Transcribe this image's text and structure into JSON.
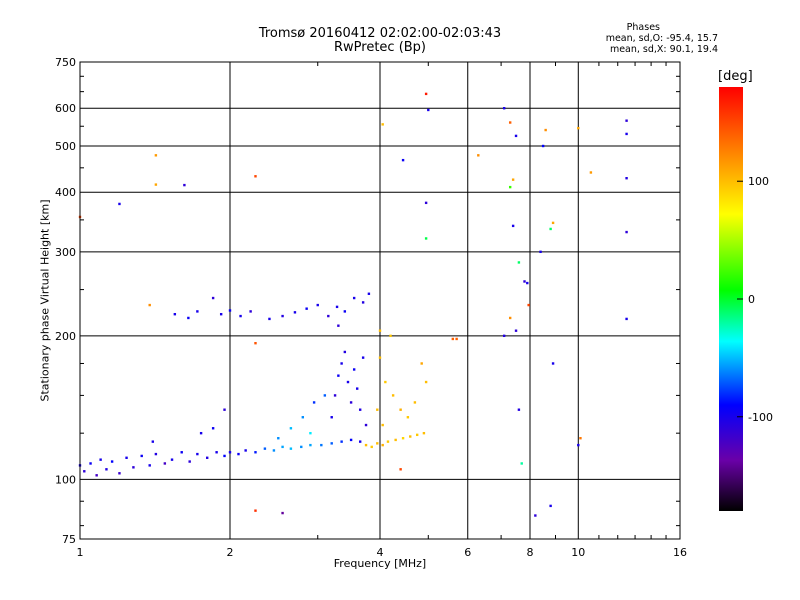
{
  "header": {
    "line1": "Tromsø 20160412 02:02:00-02:03:43",
    "line2": "RwPretec (Bp)"
  },
  "stats": {
    "heading": "Phases",
    "o_mode": "mean, sd,O: -95.4, 15.7",
    "x_mode": "mean, sd,X:  90.1, 19.4"
  },
  "chart_data": {
    "type": "scatter",
    "title": "Tromsø 20160412 02:02:00-02:03:43",
    "subtitle": "RwPretec (Bp)",
    "xlabel": "Frequency [MHz]",
    "ylabel": "Stationary phase Virtual Height [km]",
    "x_scale": "log",
    "y_scale": "log",
    "xlim": [
      1,
      16
    ],
    "ylim": [
      75,
      750
    ],
    "x_ticks": [
      1,
      2,
      4,
      6,
      8,
      10,
      16
    ],
    "x_tick_labels": [
      "1",
      "2",
      "4",
      "6",
      "8",
      "10",
      "16"
    ],
    "y_ticks": [
      75,
      100,
      200,
      300,
      400,
      500,
      600,
      750
    ],
    "y_tick_labels": [
      "75",
      "100",
      "200",
      "300",
      "400",
      "500",
      "600",
      "750"
    ],
    "grid": true,
    "colorbar": {
      "label": "[deg]",
      "range": [
        -180,
        180
      ],
      "ticks": [
        100,
        0,
        -100
      ],
      "tick_labels": [
        "100",
        "0",
        "-100"
      ],
      "colormap": [
        "#000000",
        "#6a00a8",
        "#0000ff",
        "#00ffff",
        "#00ff00",
        "#ffff00",
        "#ff8000",
        "#ff0000"
      ]
    },
    "series": [
      {
        "values": [
          {
            "x": 1.0,
            "y": 107,
            "phase": -100
          },
          {
            "x": 1.02,
            "y": 104,
            "phase": -110
          },
          {
            "x": 1.05,
            "y": 108,
            "phase": -95
          },
          {
            "x": 1.08,
            "y": 102,
            "phase": -120
          },
          {
            "x": 1.1,
            "y": 110,
            "phase": -100
          },
          {
            "x": 1.13,
            "y": 105,
            "phase": -105
          },
          {
            "x": 1.16,
            "y": 109,
            "phase": -90
          },
          {
            "x": 1.2,
            "y": 103,
            "phase": -115
          },
          {
            "x": 1.24,
            "y": 111,
            "phase": -100
          },
          {
            "x": 1.28,
            "y": 106,
            "phase": -110
          },
          {
            "x": 1.33,
            "y": 112,
            "phase": -95
          },
          {
            "x": 1.38,
            "y": 107,
            "phase": -100
          },
          {
            "x": 1.42,
            "y": 113,
            "phase": -105
          },
          {
            "x": 1.48,
            "y": 108,
            "phase": -120
          },
          {
            "x": 1.53,
            "y": 110,
            "phase": -100
          },
          {
            "x": 1.6,
            "y": 114,
            "phase": -95
          },
          {
            "x": 1.66,
            "y": 109,
            "phase": -110
          },
          {
            "x": 1.72,
            "y": 113,
            "phase": -100
          },
          {
            "x": 1.8,
            "y": 111,
            "phase": -105
          },
          {
            "x": 1.88,
            "y": 114,
            "phase": -100
          },
          {
            "x": 1.95,
            "y": 112,
            "phase": -90
          },
          {
            "x": 2.0,
            "y": 114,
            "phase": -100
          },
          {
            "x": 2.08,
            "y": 113,
            "phase": -95
          },
          {
            "x": 2.15,
            "y": 115,
            "phase": -100
          },
          {
            "x": 2.25,
            "y": 114,
            "phase": -85
          },
          {
            "x": 2.35,
            "y": 116,
            "phase": -70
          },
          {
            "x": 2.45,
            "y": 115,
            "phase": -60
          },
          {
            "x": 2.55,
            "y": 117,
            "phase": -55
          },
          {
            "x": 2.65,
            "y": 116,
            "phase": -50
          },
          {
            "x": 2.78,
            "y": 117,
            "phase": -60
          },
          {
            "x": 2.9,
            "y": 118,
            "phase": -55
          },
          {
            "x": 3.05,
            "y": 118,
            "phase": -65
          },
          {
            "x": 3.2,
            "y": 119,
            "phase": -70
          },
          {
            "x": 3.35,
            "y": 120,
            "phase": -80
          },
          {
            "x": 3.5,
            "y": 121,
            "phase": -90
          },
          {
            "x": 3.65,
            "y": 120,
            "phase": -100
          },
          {
            "x": 3.75,
            "y": 118,
            "phase": 100
          },
          {
            "x": 3.85,
            "y": 117,
            "phase": 95
          },
          {
            "x": 3.95,
            "y": 119,
            "phase": 100
          },
          {
            "x": 4.05,
            "y": 118,
            "phase": 105
          },
          {
            "x": 4.15,
            "y": 120,
            "phase": 95
          },
          {
            "x": 4.3,
            "y": 121,
            "phase": 100
          },
          {
            "x": 4.45,
            "y": 122,
            "phase": 90
          },
          {
            "x": 4.6,
            "y": 123,
            "phase": 100
          },
          {
            "x": 4.75,
            "y": 124,
            "phase": 95
          },
          {
            "x": 4.9,
            "y": 125,
            "phase": 100
          },
          {
            "x": 3.2,
            "y": 135,
            "phase": -100
          },
          {
            "x": 3.25,
            "y": 150,
            "phase": -110
          },
          {
            "x": 3.3,
            "y": 165,
            "phase": -95
          },
          {
            "x": 3.35,
            "y": 175,
            "phase": -100
          },
          {
            "x": 3.4,
            "y": 185,
            "phase": -105
          },
          {
            "x": 3.45,
            "y": 160,
            "phase": -100
          },
          {
            "x": 3.5,
            "y": 145,
            "phase": -110
          },
          {
            "x": 3.55,
            "y": 170,
            "phase": -95
          },
          {
            "x": 3.6,
            "y": 155,
            "phase": -100
          },
          {
            "x": 3.65,
            "y": 140,
            "phase": -105
          },
          {
            "x": 3.7,
            "y": 180,
            "phase": -100
          },
          {
            "x": 3.75,
            "y": 130,
            "phase": -110
          },
          {
            "x": 3.3,
            "y": 210,
            "phase": -110
          },
          {
            "x": 3.28,
            "y": 230,
            "phase": -100
          },
          {
            "x": 3.4,
            "y": 225,
            "phase": -95
          },
          {
            "x": 3.55,
            "y": 240,
            "phase": -100
          },
          {
            "x": 3.7,
            "y": 235,
            "phase": -105
          },
          {
            "x": 3.8,
            "y": 245,
            "phase": -100
          },
          {
            "x": 3.15,
            "y": 220,
            "phase": -110
          },
          {
            "x": 3.0,
            "y": 232,
            "phase": -100
          },
          {
            "x": 2.85,
            "y": 228,
            "phase": -95
          },
          {
            "x": 2.7,
            "y": 224,
            "phase": -100
          },
          {
            "x": 2.55,
            "y": 220,
            "phase": -105
          },
          {
            "x": 2.4,
            "y": 217,
            "phase": -100
          },
          {
            "x": 2.2,
            "y": 225,
            "phase": -110
          },
          {
            "x": 2.1,
            "y": 220,
            "phase": -100
          },
          {
            "x": 2.0,
            "y": 226,
            "phase": -95
          },
          {
            "x": 1.92,
            "y": 222,
            "phase": -100
          },
          {
            "x": 1.85,
            "y": 240,
            "phase": -110
          },
          {
            "x": 1.72,
            "y": 225,
            "phase": -100
          },
          {
            "x": 1.65,
            "y": 218,
            "phase": -95
          },
          {
            "x": 1.55,
            "y": 222,
            "phase": -100
          },
          {
            "x": 2.95,
            "y": 145,
            "phase": -80
          },
          {
            "x": 2.8,
            "y": 135,
            "phase": -60
          },
          {
            "x": 2.65,
            "y": 128,
            "phase": -50
          },
          {
            "x": 2.5,
            "y": 122,
            "phase": -60
          },
          {
            "x": 3.1,
            "y": 150,
            "phase": -70
          },
          {
            "x": 2.9,
            "y": 125,
            "phase": -40
          },
          {
            "x": 1.75,
            "y": 125,
            "phase": -100
          },
          {
            "x": 1.85,
            "y": 128,
            "phase": -95
          },
          {
            "x": 1.4,
            "y": 120,
            "phase": -100
          },
          {
            "x": 1.95,
            "y": 140,
            "phase": -110
          },
          {
            "x": 4.0,
            "y": 180,
            "phase": 100
          },
          {
            "x": 4.1,
            "y": 160,
            "phase": 95
          },
          {
            "x": 4.25,
            "y": 150,
            "phase": 100
          },
          {
            "x": 4.4,
            "y": 140,
            "phase": 105
          },
          {
            "x": 4.55,
            "y": 135,
            "phase": 95
          },
          {
            "x": 4.7,
            "y": 145,
            "phase": 100
          },
          {
            "x": 4.85,
            "y": 175,
            "phase": 110
          },
          {
            "x": 4.95,
            "y": 160,
            "phase": 100
          },
          {
            "x": 3.95,
            "y": 140,
            "phase": 100
          },
          {
            "x": 4.05,
            "y": 130,
            "phase": 100
          },
          {
            "x": 5.6,
            "y": 197,
            "phase": 140
          },
          {
            "x": 5.7,
            "y": 197,
            "phase": 140
          },
          {
            "x": 4.0,
            "y": 205,
            "phase": 100
          },
          {
            "x": 4.2,
            "y": 200,
            "phase": 95
          },
          {
            "x": 1.0,
            "y": 355,
            "phase": 150
          },
          {
            "x": 1.42,
            "y": 478,
            "phase": 115
          },
          {
            "x": 1.42,
            "y": 415,
            "phase": 110
          },
          {
            "x": 1.38,
            "y": 232,
            "phase": 120
          },
          {
            "x": 1.2,
            "y": 378,
            "phase": -100
          },
          {
            "x": 1.62,
            "y": 414,
            "phase": -110
          },
          {
            "x": 2.25,
            "y": 432,
            "phase": 150
          },
          {
            "x": 2.25,
            "y": 193,
            "phase": 145
          },
          {
            "x": 2.25,
            "y": 86,
            "phase": 160
          },
          {
            "x": 2.55,
            "y": 85,
            "phase": -140
          },
          {
            "x": 4.05,
            "y": 555,
            "phase": 100
          },
          {
            "x": 4.45,
            "y": 467,
            "phase": -95
          },
          {
            "x": 4.95,
            "y": 643,
            "phase": 170
          },
          {
            "x": 5.0,
            "y": 595,
            "phase": -100
          },
          {
            "x": 4.95,
            "y": 380,
            "phase": -110
          },
          {
            "x": 4.95,
            "y": 320,
            "phase": -5
          },
          {
            "x": 6.3,
            "y": 478,
            "phase": 120
          },
          {
            "x": 7.1,
            "y": 600,
            "phase": -100
          },
          {
            "x": 7.3,
            "y": 560,
            "phase": 140
          },
          {
            "x": 7.5,
            "y": 525,
            "phase": -100
          },
          {
            "x": 7.3,
            "y": 410,
            "phase": 20
          },
          {
            "x": 7.4,
            "y": 425,
            "phase": 110
          },
          {
            "x": 7.4,
            "y": 340,
            "phase": -100
          },
          {
            "x": 7.6,
            "y": 285,
            "phase": -10
          },
          {
            "x": 7.9,
            "y": 258,
            "phase": -100
          },
          {
            "x": 7.8,
            "y": 260,
            "phase": -110
          },
          {
            "x": 7.1,
            "y": 200,
            "phase": -105
          },
          {
            "x": 7.5,
            "y": 205,
            "phase": -110
          },
          {
            "x": 7.3,
            "y": 218,
            "phase": 120
          },
          {
            "x": 7.95,
            "y": 232,
            "phase": 150
          },
          {
            "x": 8.4,
            "y": 300,
            "phase": -100
          },
          {
            "x": 8.5,
            "y": 500,
            "phase": -90
          },
          {
            "x": 8.6,
            "y": 540,
            "phase": 120
          },
          {
            "x": 8.9,
            "y": 345,
            "phase": 110
          },
          {
            "x": 8.8,
            "y": 335,
            "phase": -10
          },
          {
            "x": 8.9,
            "y": 175,
            "phase": -100
          },
          {
            "x": 8.8,
            "y": 88,
            "phase": -100
          },
          {
            "x": 8.2,
            "y": 84,
            "phase": -110
          },
          {
            "x": 7.7,
            "y": 108,
            "phase": -20
          },
          {
            "x": 7.6,
            "y": 140,
            "phase": -105
          },
          {
            "x": 10.0,
            "y": 545,
            "phase": 110
          },
          {
            "x": 10.1,
            "y": 122,
            "phase": 130
          },
          {
            "x": 10.0,
            "y": 118,
            "phase": -100
          },
          {
            "x": 10.6,
            "y": 440,
            "phase": 115
          },
          {
            "x": 12.5,
            "y": 565,
            "phase": -110
          },
          {
            "x": 12.5,
            "y": 530,
            "phase": -100
          },
          {
            "x": 12.5,
            "y": 428,
            "phase": -105
          },
          {
            "x": 12.5,
            "y": 330,
            "phase": -110
          },
          {
            "x": 12.5,
            "y": 217,
            "phase": -100
          },
          {
            "x": 4.4,
            "y": 105,
            "phase": 150
          }
        ]
      }
    ]
  }
}
